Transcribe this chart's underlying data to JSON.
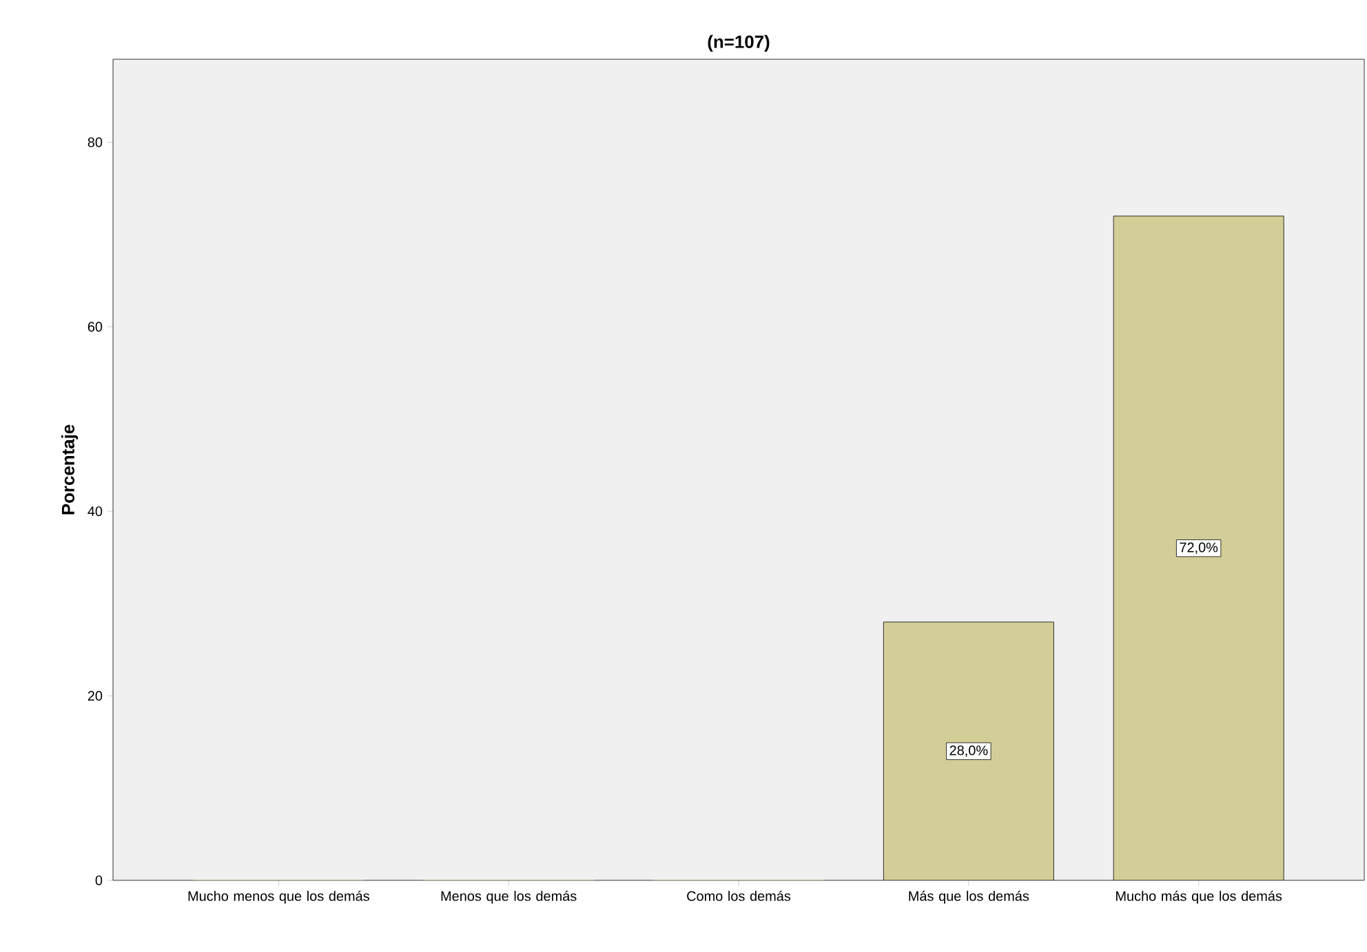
{
  "chart_data": {
    "type": "bar",
    "title": "(n=107)",
    "ylabel": "Porcentaje",
    "categories": [
      "Mucho menos que los demás",
      "Menos que los demás",
      "Como los demás",
      "Más que los demás",
      "Mucho más que los demás"
    ],
    "values": [
      0,
      0,
      0,
      28,
      72
    ],
    "value_labels": [
      null,
      null,
      null,
      "28,0%",
      "72,0%"
    ],
    "color": "#d3ce97",
    "ylim": [
      0,
      89
    ],
    "yticks": [
      0,
      20,
      40,
      60,
      80
    ],
    "grid": false
  }
}
